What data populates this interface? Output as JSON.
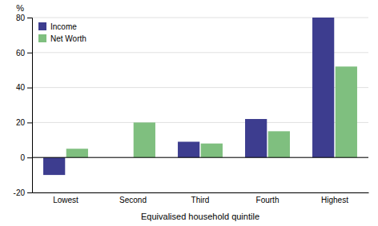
{
  "chart_data": {
    "type": "bar",
    "categories": [
      "Lowest",
      "Second",
      "Third",
      "Fourth",
      "Highest"
    ],
    "series": [
      {
        "name": "Income",
        "color": "#3d3d8f",
        "values": [
          -10,
          0,
          9,
          22,
          80
        ]
      },
      {
        "name": "Net Worth",
        "color": "#7fbf7f",
        "values": [
          5,
          20,
          8,
          15,
          52
        ]
      }
    ],
    "xlabel": "Equivalised household quintile",
    "ylabel": "%",
    "ylim": [
      -20,
      80
    ],
    "yticks": [
      -20,
      0,
      20,
      40,
      60,
      80
    ],
    "grid": true,
    "legend": "upper left"
  }
}
